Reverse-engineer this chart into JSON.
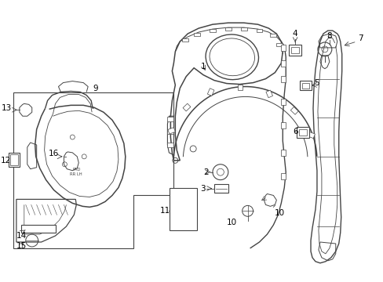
{
  "bg_color": "#ffffff",
  "line_color": "#444444",
  "fig_width": 4.89,
  "fig_height": 3.6,
  "dpi": 100
}
